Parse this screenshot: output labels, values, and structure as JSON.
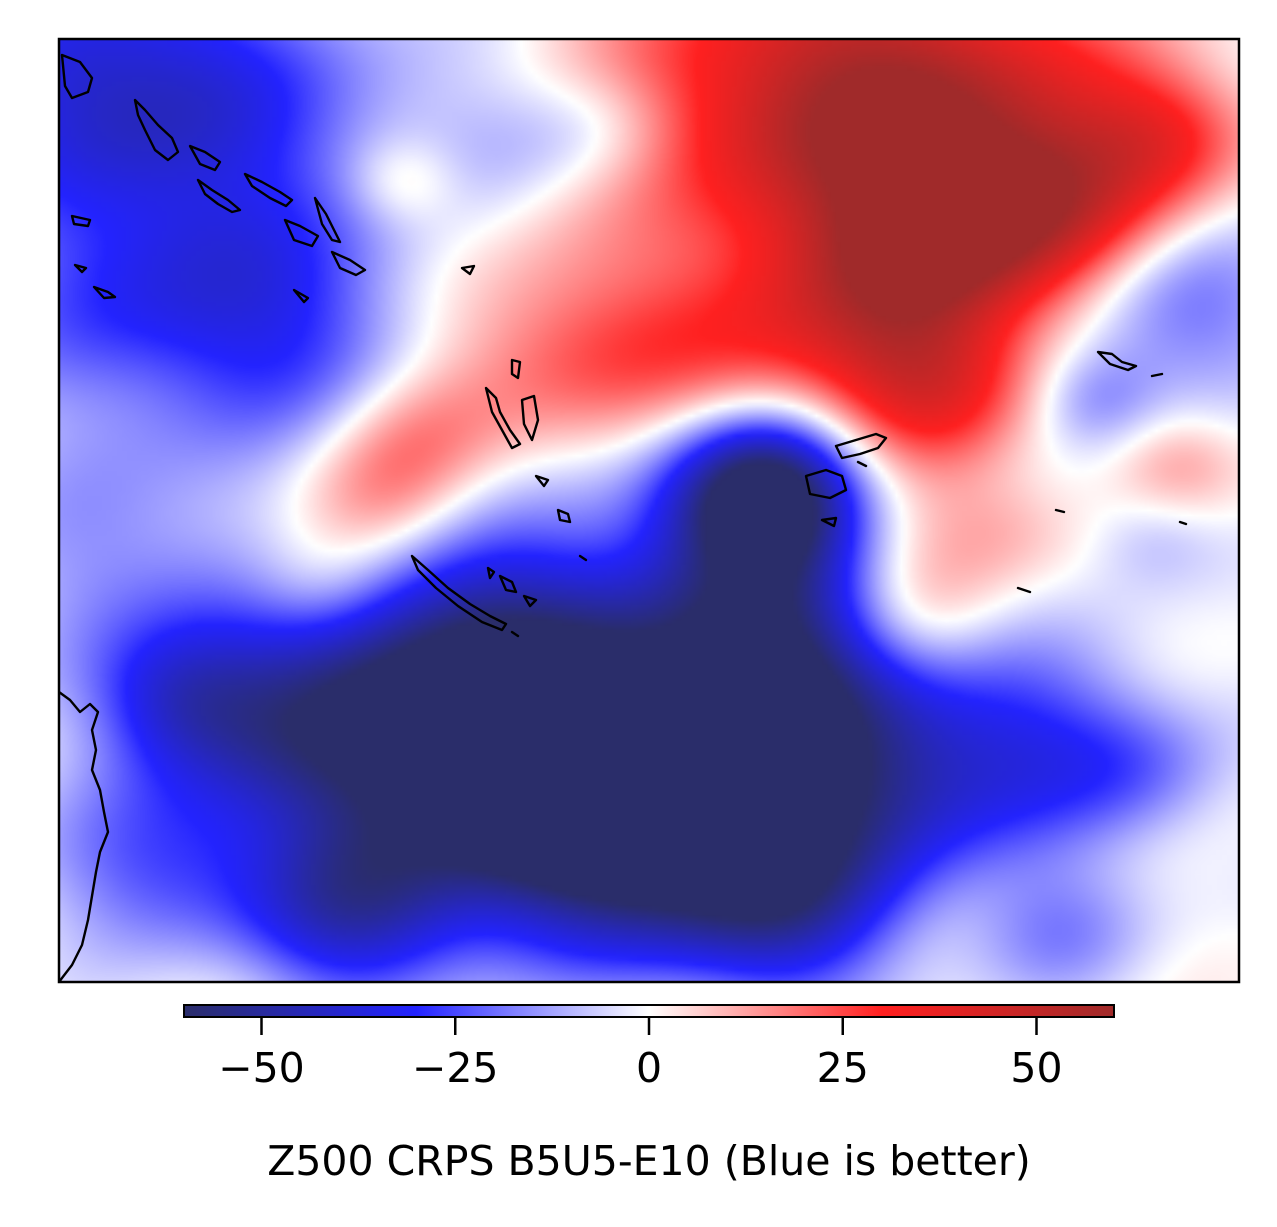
{
  "chart_data": {
    "type": "heatmap",
    "colormap": "seismic-like diverging",
    "colors": {
      "min": "#2a2d6a",
      "low": "#2323ff",
      "mid": "#ffffff",
      "high": "#ff2020",
      "max": "#a02a2a",
      "coastline": "#000000"
    },
    "vmin": -60,
    "vmax": 60,
    "colorbar": {
      "ticks": [
        -50,
        -25,
        0,
        25,
        50
      ],
      "tick_labels": [
        "−50",
        "−25",
        "0",
        "25",
        "50"
      ],
      "label": "Z500 CRPS B5U5-E10 (Blue is better)",
      "orientation": "horizontal",
      "placement": "bottom"
    },
    "field_blobs": [
      {
        "x": 0.02,
        "y": 0.03,
        "r": 0.14,
        "v": -28
      },
      {
        "x": 0.15,
        "y": 0.08,
        "r": 0.18,
        "v": -22
      },
      {
        "x": 0.08,
        "y": 0.28,
        "r": 0.16,
        "v": -26
      },
      {
        "x": 0.22,
        "y": 0.32,
        "r": 0.12,
        "v": -16
      },
      {
        "x": 0.05,
        "y": 0.55,
        "r": 0.12,
        "v": -14
      },
      {
        "x": 0.38,
        "y": 0.1,
        "r": 0.08,
        "v": -6
      },
      {
        "x": 0.46,
        "y": 0.09,
        "r": 0.07,
        "v": -10
      },
      {
        "x": 0.62,
        "y": 0.05,
        "r": 0.18,
        "v": 32
      },
      {
        "x": 0.75,
        "y": 0.09,
        "r": 0.17,
        "v": 42
      },
      {
        "x": 0.84,
        "y": 0.18,
        "r": 0.1,
        "v": 30
      },
      {
        "x": 0.94,
        "y": 0.1,
        "r": 0.08,
        "v": 22
      },
      {
        "x": 0.29,
        "y": 0.15,
        "r": 0.05,
        "v": 12
      },
      {
        "x": 0.4,
        "y": 0.33,
        "r": 0.12,
        "v": 18
      },
      {
        "x": 0.55,
        "y": 0.35,
        "r": 0.12,
        "v": 20
      },
      {
        "x": 0.68,
        "y": 0.3,
        "r": 0.13,
        "v": 22
      },
      {
        "x": 0.74,
        "y": 0.22,
        "r": 0.1,
        "v": 28
      },
      {
        "x": 0.74,
        "y": 0.37,
        "r": 0.09,
        "v": 28
      },
      {
        "x": 0.3,
        "y": 0.42,
        "r": 0.08,
        "v": 14
      },
      {
        "x": 0.27,
        "y": 0.5,
        "r": 0.08,
        "v": 18
      },
      {
        "x": 0.22,
        "y": 0.58,
        "r": 0.07,
        "v": 14
      },
      {
        "x": 0.7,
        "y": 0.52,
        "r": 0.1,
        "v": 18
      },
      {
        "x": 0.72,
        "y": 0.62,
        "r": 0.08,
        "v": 16
      },
      {
        "x": 0.8,
        "y": 0.52,
        "r": 0.07,
        "v": 8
      },
      {
        "x": 0.95,
        "y": 0.45,
        "r": 0.06,
        "v": 12
      },
      {
        "x": 0.95,
        "y": 0.28,
        "r": 0.1,
        "v": -22
      },
      {
        "x": 0.88,
        "y": 0.38,
        "r": 0.06,
        "v": -16
      },
      {
        "x": 0.93,
        "y": 0.53,
        "r": 0.06,
        "v": -10
      },
      {
        "x": 0.6,
        "y": 0.5,
        "r": 0.13,
        "v": -38
      },
      {
        "x": 0.6,
        "y": 0.48,
        "r": 0.08,
        "v": -48
      },
      {
        "x": 0.35,
        "y": 0.62,
        "r": 0.13,
        "v": -34
      },
      {
        "x": 0.2,
        "y": 0.72,
        "r": 0.14,
        "v": -36
      },
      {
        "x": 0.35,
        "y": 0.78,
        "r": 0.15,
        "v": -48
      },
      {
        "x": 0.5,
        "y": 0.75,
        "r": 0.15,
        "v": -52
      },
      {
        "x": 0.5,
        "y": 0.85,
        "r": 0.14,
        "v": -48
      },
      {
        "x": 0.62,
        "y": 0.65,
        "r": 0.12,
        "v": -40
      },
      {
        "x": 0.68,
        "y": 0.8,
        "r": 0.12,
        "v": -34
      },
      {
        "x": 0.82,
        "y": 0.75,
        "r": 0.12,
        "v": -26
      },
      {
        "x": 0.92,
        "y": 0.78,
        "r": 0.08,
        "v": -12
      },
      {
        "x": 0.08,
        "y": 0.88,
        "r": 0.1,
        "v": -22
      },
      {
        "x": 0.1,
        "y": 0.7,
        "r": 0.08,
        "v": -24
      },
      {
        "x": 0.25,
        "y": 0.93,
        "r": 0.1,
        "v": -36
      },
      {
        "x": 0.62,
        "y": 0.93,
        "r": 0.1,
        "v": -30
      },
      {
        "x": 0.85,
        "y": 0.95,
        "r": 0.08,
        "v": -14
      }
    ]
  }
}
